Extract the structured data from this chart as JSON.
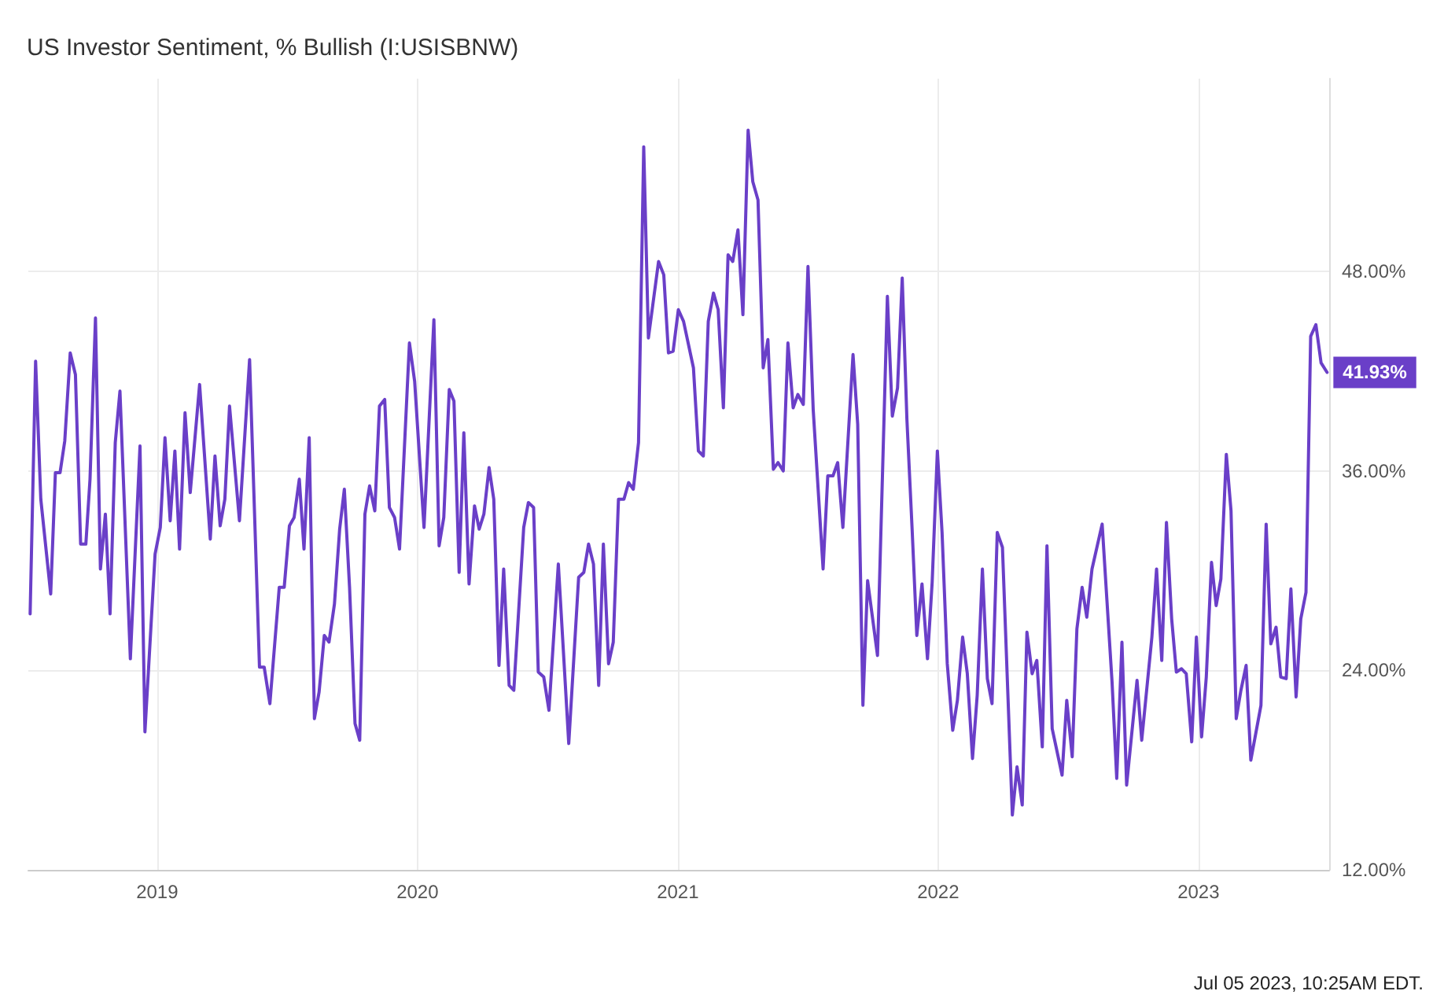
{
  "chart_data": {
    "type": "line",
    "title": "US Investor Sentiment, % Bullish (I:USISBNW)",
    "x": [
      2018.512,
      2018.533,
      2018.553,
      2018.591,
      2018.609,
      2018.627,
      2018.645,
      2018.666,
      2018.686,
      2018.706,
      2018.726,
      2018.742,
      2018.763,
      2018.782,
      2018.801,
      2018.819,
      2018.839,
      2018.857,
      2018.897,
      2018.934,
      2018.953,
      2018.992,
      2019.012,
      2019.03,
      2019.05,
      2019.068,
      2019.086,
      2019.107,
      2019.127,
      2019.163,
      2019.204,
      2019.222,
      2019.242,
      2019.26,
      2019.278,
      2019.316,
      2019.355,
      2019.393,
      2019.411,
      2019.433,
      2019.469,
      2019.488,
      2019.508,
      2019.526,
      2019.546,
      2019.564,
      2019.584,
      2019.604,
      2019.622,
      2019.642,
      2019.66,
      2019.681,
      2019.701,
      2019.719,
      2019.739,
      2019.76,
      2019.778,
      2019.798,
      2019.816,
      2019.836,
      2019.854,
      2019.874,
      2019.892,
      2019.912,
      2019.931,
      2019.969,
      2019.989,
      2020.025,
      2020.063,
      2020.083,
      2020.101,
      2020.122,
      2020.14,
      2020.16,
      2020.178,
      2020.198,
      2020.219,
      2020.237,
      2020.255,
      2020.275,
      2020.293,
      2020.313,
      2020.331,
      2020.352,
      2020.37,
      2020.408,
      2020.426,
      2020.446,
      2020.464,
      2020.485,
      2020.505,
      2020.541,
      2020.581,
      2020.619,
      2020.639,
      2020.657,
      2020.676,
      2020.696,
      2020.714,
      2020.734,
      2020.752,
      2020.772,
      2020.793,
      2020.811,
      2020.829,
      2020.849,
      2020.869,
      2020.887,
      2020.926,
      2020.946,
      2020.964,
      2020.982,
      2021.002,
      2021.022,
      2021.06,
      2021.079,
      2021.098,
      2021.117,
      2021.137,
      2021.155,
      2021.175,
      2021.193,
      2021.211,
      2021.231,
      2021.25,
      2021.27,
      2021.288,
      2021.308,
      2021.328,
      2021.346,
      2021.367,
      2021.385,
      2021.405,
      2021.423,
      2021.443,
      2021.461,
      2021.482,
      2021.5,
      2021.52,
      2021.558,
      2021.576,
      2021.596,
      2021.614,
      2021.634,
      2021.673,
      2021.691,
      2021.711,
      2021.729,
      2021.767,
      2021.805,
      2021.824,
      2021.844,
      2021.862,
      2021.88,
      2021.9,
      2021.918,
      2021.938,
      2021.959,
      2021.977,
      2021.997,
      2022.015,
      2022.035,
      2022.056,
      2022.074,
      2022.094,
      2022.112,
      2022.132,
      2022.15,
      2022.17,
      2022.189,
      2022.207,
      2022.227,
      2022.247,
      2022.285,
      2022.303,
      2022.323,
      2022.341,
      2022.361,
      2022.379,
      2022.4,
      2022.418,
      2022.438,
      2022.476,
      2022.494,
      2022.515,
      2022.533,
      2022.553,
      2022.571,
      2022.591,
      2022.63,
      2022.668,
      2022.686,
      2022.706,
      2022.724,
      2022.764,
      2022.782,
      2022.821,
      2022.839,
      2022.859,
      2022.877,
      2022.897,
      2022.915,
      2022.935,
      2022.953,
      2022.974,
      2022.992,
      2023.012,
      2023.03,
      2023.05,
      2023.068,
      2023.086,
      2023.107,
      2023.125,
      2023.145,
      2023.163,
      2023.183,
      2023.201,
      2023.24,
      2023.26,
      2023.278,
      2023.298,
      2023.316,
      2023.337,
      2023.355,
      2023.375,
      2023.393,
      2023.413,
      2023.431,
      2023.451,
      2023.471,
      2023.494
    ],
    "series": [
      {
        "color": "#6a3fc8",
        "values": [
          27.4,
          42.6,
          34.3,
          28.6,
          35.9,
          35.9,
          37.8,
          43.1,
          41.8,
          31.6,
          31.6,
          35.5,
          45.2,
          30.1,
          33.4,
          27.4,
          37.7,
          40.8,
          24.7,
          37.5,
          20.3,
          31.0,
          32.6,
          38.0,
          33.0,
          37.2,
          31.3,
          39.5,
          34.7,
          41.2,
          31.9,
          36.9,
          32.7,
          34.3,
          39.9,
          33.0,
          42.7,
          24.2,
          24.2,
          22.0,
          29.0,
          29.0,
          32.7,
          33.2,
          35.5,
          31.3,
          38.0,
          21.1,
          22.7,
          26.1,
          25.7,
          28.0,
          32.5,
          34.9,
          29.0,
          20.8,
          19.8,
          33.4,
          35.1,
          33.6,
          39.9,
          40.3,
          33.8,
          33.2,
          31.3,
          43.7,
          41.4,
          32.6,
          45.1,
          31.5,
          33.2,
          40.9,
          40.2,
          29.9,
          38.3,
          29.2,
          33.9,
          32.5,
          33.4,
          36.2,
          34.3,
          24.3,
          30.1,
          23.1,
          22.8,
          32.6,
          34.1,
          33.8,
          23.9,
          23.6,
          21.6,
          30.4,
          19.6,
          29.6,
          29.9,
          31.6,
          30.4,
          23.1,
          31.6,
          24.4,
          25.7,
          34.3,
          34.3,
          35.3,
          34.9,
          37.7,
          55.5,
          44.0,
          48.6,
          47.8,
          43.1,
          43.2,
          45.7,
          45.0,
          42.2,
          37.2,
          36.9,
          45.0,
          46.7,
          45.7,
          39.8,
          49.0,
          48.6,
          50.5,
          45.4,
          56.5,
          53.4,
          52.3,
          42.2,
          43.9,
          36.1,
          36.5,
          36.0,
          43.7,
          39.8,
          40.6,
          40.0,
          48.3,
          39.7,
          30.1,
          35.7,
          35.7,
          36.5,
          32.6,
          43.0,
          38.8,
          21.9,
          29.4,
          24.9,
          46.5,
          39.3,
          41.0,
          47.6,
          39.1,
          32.5,
          26.1,
          29.2,
          24.7,
          29.3,
          37.2,
          32.3,
          24.4,
          20.4,
          22.2,
          26.0,
          23.8,
          18.7,
          22.5,
          30.1,
          23.5,
          22.0,
          32.3,
          31.4,
          15.3,
          18.2,
          15.9,
          26.3,
          23.8,
          24.6,
          19.4,
          31.5,
          20.5,
          17.7,
          22.2,
          18.8,
          26.5,
          29.0,
          27.2,
          30.1,
          32.8,
          23.3,
          17.5,
          25.7,
          17.1,
          23.4,
          19.8,
          26.0,
          30.1,
          24.6,
          32.9,
          27.1,
          23.9,
          24.1,
          23.8,
          19.7,
          26.0,
          20.0,
          23.6,
          30.5,
          27.9,
          29.5,
          37.0,
          33.6,
          21.1,
          22.8,
          24.3,
          18.6,
          21.9,
          32.8,
          25.6,
          26.6,
          23.6,
          23.5,
          28.9,
          22.4,
          27.1,
          28.7,
          44.1,
          44.8,
          42.5,
          41.93
        ]
      }
    ],
    "xlim": [
      2018.505,
      2023.502
    ],
    "xticks": [
      2019,
      2020,
      2021,
      2022,
      2023
    ],
    "ylim": [
      12,
      59.6
    ],
    "yticks": [
      {
        "value": 12,
        "label": "12.00%"
      },
      {
        "value": 24,
        "label": "24.00%"
      },
      {
        "value": 36,
        "label": "36.00%"
      },
      {
        "value": 48,
        "label": "48.00%"
      }
    ],
    "grid": true,
    "marker": "none",
    "line_style": "solid",
    "annotations": [
      {
        "text": "41.93%",
        "x": 2023.494,
        "y": 41.93
      },
      "Jul 05 2023, 10:25AM EDT."
    ]
  }
}
